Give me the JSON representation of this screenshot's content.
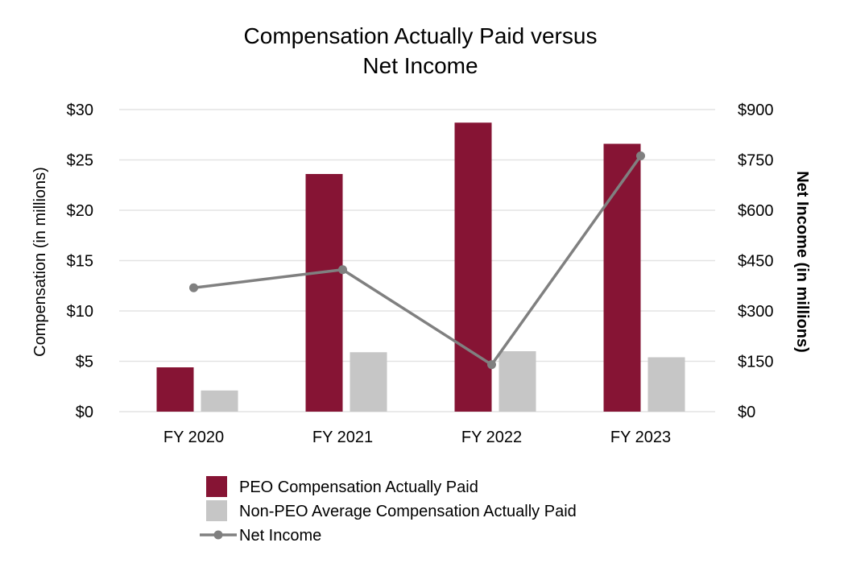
{
  "chart_data": {
    "type": "bar",
    "title": [
      "Compensation Actually Paid versus",
      "Net Income"
    ],
    "categories": [
      "FY 2020",
      "FY 2021",
      "FY 2022",
      "FY 2023"
    ],
    "y_left": {
      "label": "Compensation (in millions)",
      "min": 0,
      "max": 30,
      "step": 5,
      "tick_labels": [
        "$0",
        "$5",
        "$10",
        "$15",
        "$20",
        "$25",
        "$30"
      ]
    },
    "y_right": {
      "label": "Net Income (in millions)",
      "min": 0,
      "max": 900,
      "step": 150,
      "tick_labels": [
        "$0",
        "$150",
        "$300",
        "$450",
        "$600",
        "$750",
        "$900"
      ]
    },
    "series": [
      {
        "name": "PEO Compensation Actually Paid",
        "type": "bar",
        "axis": "left",
        "color": "#861434",
        "values": [
          4.4,
          23.6,
          28.7,
          26.6
        ]
      },
      {
        "name": "Non-PEO Average Compensation Actually Paid",
        "type": "bar",
        "axis": "left",
        "color": "#c6c6c6",
        "values": [
          2.1,
          5.9,
          6.0,
          5.4
        ]
      },
      {
        "name": "Net Income",
        "type": "line",
        "axis": "right",
        "color": "#808080",
        "values": [
          369,
          423,
          140,
          762
        ]
      }
    ],
    "grid": true,
    "legend_position": "bottom"
  }
}
